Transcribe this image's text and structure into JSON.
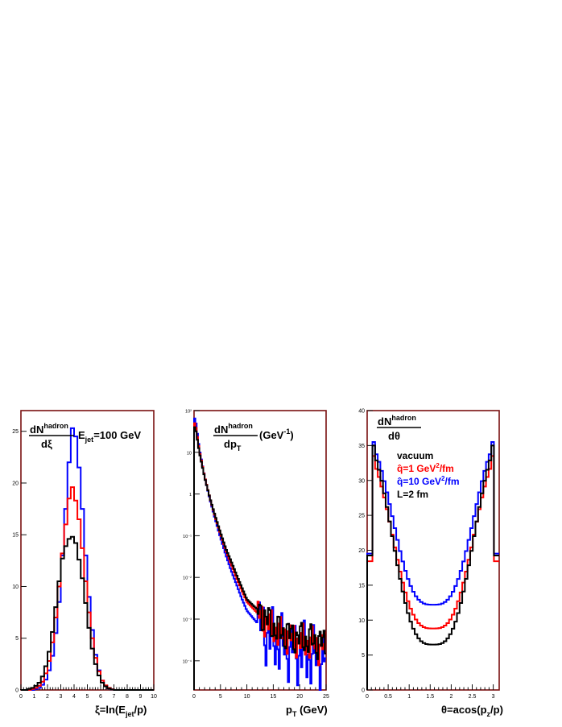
{
  "colors": {
    "vacuum": "#000000",
    "qhat1": "#ff0000",
    "qhat10": "#0000ff",
    "frame": "#7a1010"
  },
  "chart_data": [
    {
      "type": "step",
      "xlim": [
        0,
        10
      ],
      "ylim": [
        0,
        27
      ],
      "xticks": [
        0,
        1,
        2,
        3,
        4,
        5,
        6,
        7,
        8,
        9,
        10
      ],
      "yticks": [
        0,
        5,
        10,
        15,
        20,
        25
      ],
      "ylabel": {
        "numerator": "dN",
        "numerator_sup": "hadron",
        "denominator": "dξ"
      },
      "xlabel": {
        "prefix": "ξ=ln(E",
        "sub": "jet",
        "suffix": "/p)"
      },
      "annotation": {
        "prefix": "E",
        "sub": "jet",
        "suffix": "=100 GeV"
      },
      "bin_width": 0.25,
      "x_start": 0,
      "series": [
        {
          "key": "vacuum",
          "values": [
            0,
            0,
            0.1,
            0.2,
            0.4,
            0.7,
            1.3,
            2.3,
            3.7,
            5.6,
            8,
            10.5,
            12.7,
            13.9,
            14.6,
            14.8,
            14.2,
            12.6,
            10.8,
            8.4,
            6,
            4,
            2.5,
            1.4,
            0.7,
            0.35,
            0.15,
            0.05,
            0,
            0,
            0,
            0,
            0,
            0,
            0,
            0,
            0,
            0,
            0,
            0
          ]
        },
        {
          "key": "qhat1",
          "values": [
            0,
            0,
            0,
            0.1,
            0.2,
            0.4,
            0.8,
            1.6,
            2.8,
            4.6,
            7,
            10,
            13.2,
            16,
            18.5,
            19.6,
            18.3,
            16.5,
            13.7,
            10.5,
            7.5,
            5,
            3.1,
            1.8,
            0.9,
            0.45,
            0.2,
            0.07,
            0,
            0,
            0,
            0,
            0,
            0,
            0,
            0,
            0,
            0,
            0,
            0
          ]
        },
        {
          "key": "qhat10",
          "values": [
            0,
            0,
            0,
            0,
            0.1,
            0.2,
            0.5,
            1,
            1.9,
            3.3,
            5.5,
            8.5,
            13,
            17.5,
            22,
            25.3,
            24.5,
            21.5,
            17.5,
            13,
            9,
            5.8,
            3.4,
            1.9,
            0.9,
            0.4,
            0.15,
            0.05,
            0,
            0,
            0,
            0,
            0,
            0,
            0,
            0,
            0,
            0,
            0,
            0
          ]
        }
      ]
    },
    {
      "type": "step",
      "yscale": "log",
      "xlim": [
        0,
        25
      ],
      "ylim": [
        2e-05,
        100
      ],
      "xticks": [
        0,
        5,
        10,
        15,
        20,
        25
      ],
      "yticks": [
        0.0001,
        0.001,
        0.01,
        0.1,
        1,
        10,
        100
      ],
      "ytick_labels": [
        "10⁻⁴",
        "10⁻³",
        "10⁻²",
        "10⁻¹",
        "1",
        "10",
        "10²"
      ],
      "ylabel": {
        "numerator": "dN",
        "numerator_sup": "hadron",
        "denominator": "dp",
        "denominator_sub": "T",
        "unit": "(GeV",
        "unit_sup": "-1",
        "unit_close": ")"
      },
      "xlabel": {
        "prefix": "p",
        "sub": "T",
        "suffix": " (GeV)"
      },
      "bin_width": 0.25,
      "x_start": 0,
      "series": [
        {
          "key": "vacuum",
          "values": [
            40,
            10,
            2.5,
            0.8,
            0.3,
            0.12,
            0.05,
            0.025,
            0.012,
            0.006,
            0.003,
            0.0017,
            0.0009,
            0.0005,
            0.00035,
            0.00025
          ],
          "knots": [
            0.25,
            1,
            2,
            3,
            4,
            5,
            6,
            7,
            8,
            9,
            10,
            12,
            14,
            16,
            20,
            25
          ]
        },
        {
          "key": "qhat1",
          "values": [
            50,
            11,
            2.6,
            0.8,
            0.28,
            0.11,
            0.045,
            0.021,
            0.01,
            0.005,
            0.0026,
            0.0014,
            0.0008,
            0.00045,
            0.0003,
            0.0002
          ],
          "knots": [
            0.25,
            1,
            2,
            3,
            4,
            5,
            6,
            7,
            8,
            9,
            10,
            12,
            14,
            16,
            20,
            25
          ]
        },
        {
          "key": "qhat10",
          "values": [
            65,
            12,
            2.6,
            0.75,
            0.25,
            0.09,
            0.035,
            0.015,
            0.007,
            0.0032,
            0.0016,
            0.0008,
            0.0004,
            0.00025,
            0.00015,
            0.0001
          ],
          "knots": [
            0.25,
            1,
            2,
            3,
            4,
            5,
            6,
            7,
            8,
            9,
            10,
            12,
            14,
            16,
            20,
            25
          ]
        }
      ]
    },
    {
      "type": "step",
      "xlim": [
        0,
        3.14159
      ],
      "ylim": [
        0,
        40
      ],
      "xticks": [
        0,
        0.5,
        1,
        1.5,
        2,
        2.5,
        3
      ],
      "yticks": [
        0,
        5,
        10,
        15,
        20,
        25,
        30,
        35,
        40
      ],
      "ylabel": {
        "numerator": "dN",
        "numerator_sup": "hadron",
        "denominator": "dθ"
      },
      "xlabel": {
        "prefix": "θ=acos(p",
        "sub": "z",
        "suffix": "/p)"
      },
      "legend": [
        {
          "key": "vacuum",
          "parts": [
            "vacuum"
          ]
        },
        {
          "key": "qhat1",
          "parts": [
            "q̂=1 GeV",
            "2",
            "/fm"
          ]
        },
        {
          "key": "qhat10",
          "parts": [
            "q̂=10 GeV",
            "2",
            "/fm"
          ]
        },
        {
          "key": "plain",
          "parts": [
            "L=2 fm"
          ]
        }
      ],
      "series": [
        {
          "key": "vacuum",
          "depth": 6.5,
          "edge": 35
        },
        {
          "key": "qhat1",
          "depth": 8.8,
          "edge": 33.5
        },
        {
          "key": "qhat10",
          "depth": 12.2,
          "edge": 35.5
        }
      ]
    }
  ]
}
